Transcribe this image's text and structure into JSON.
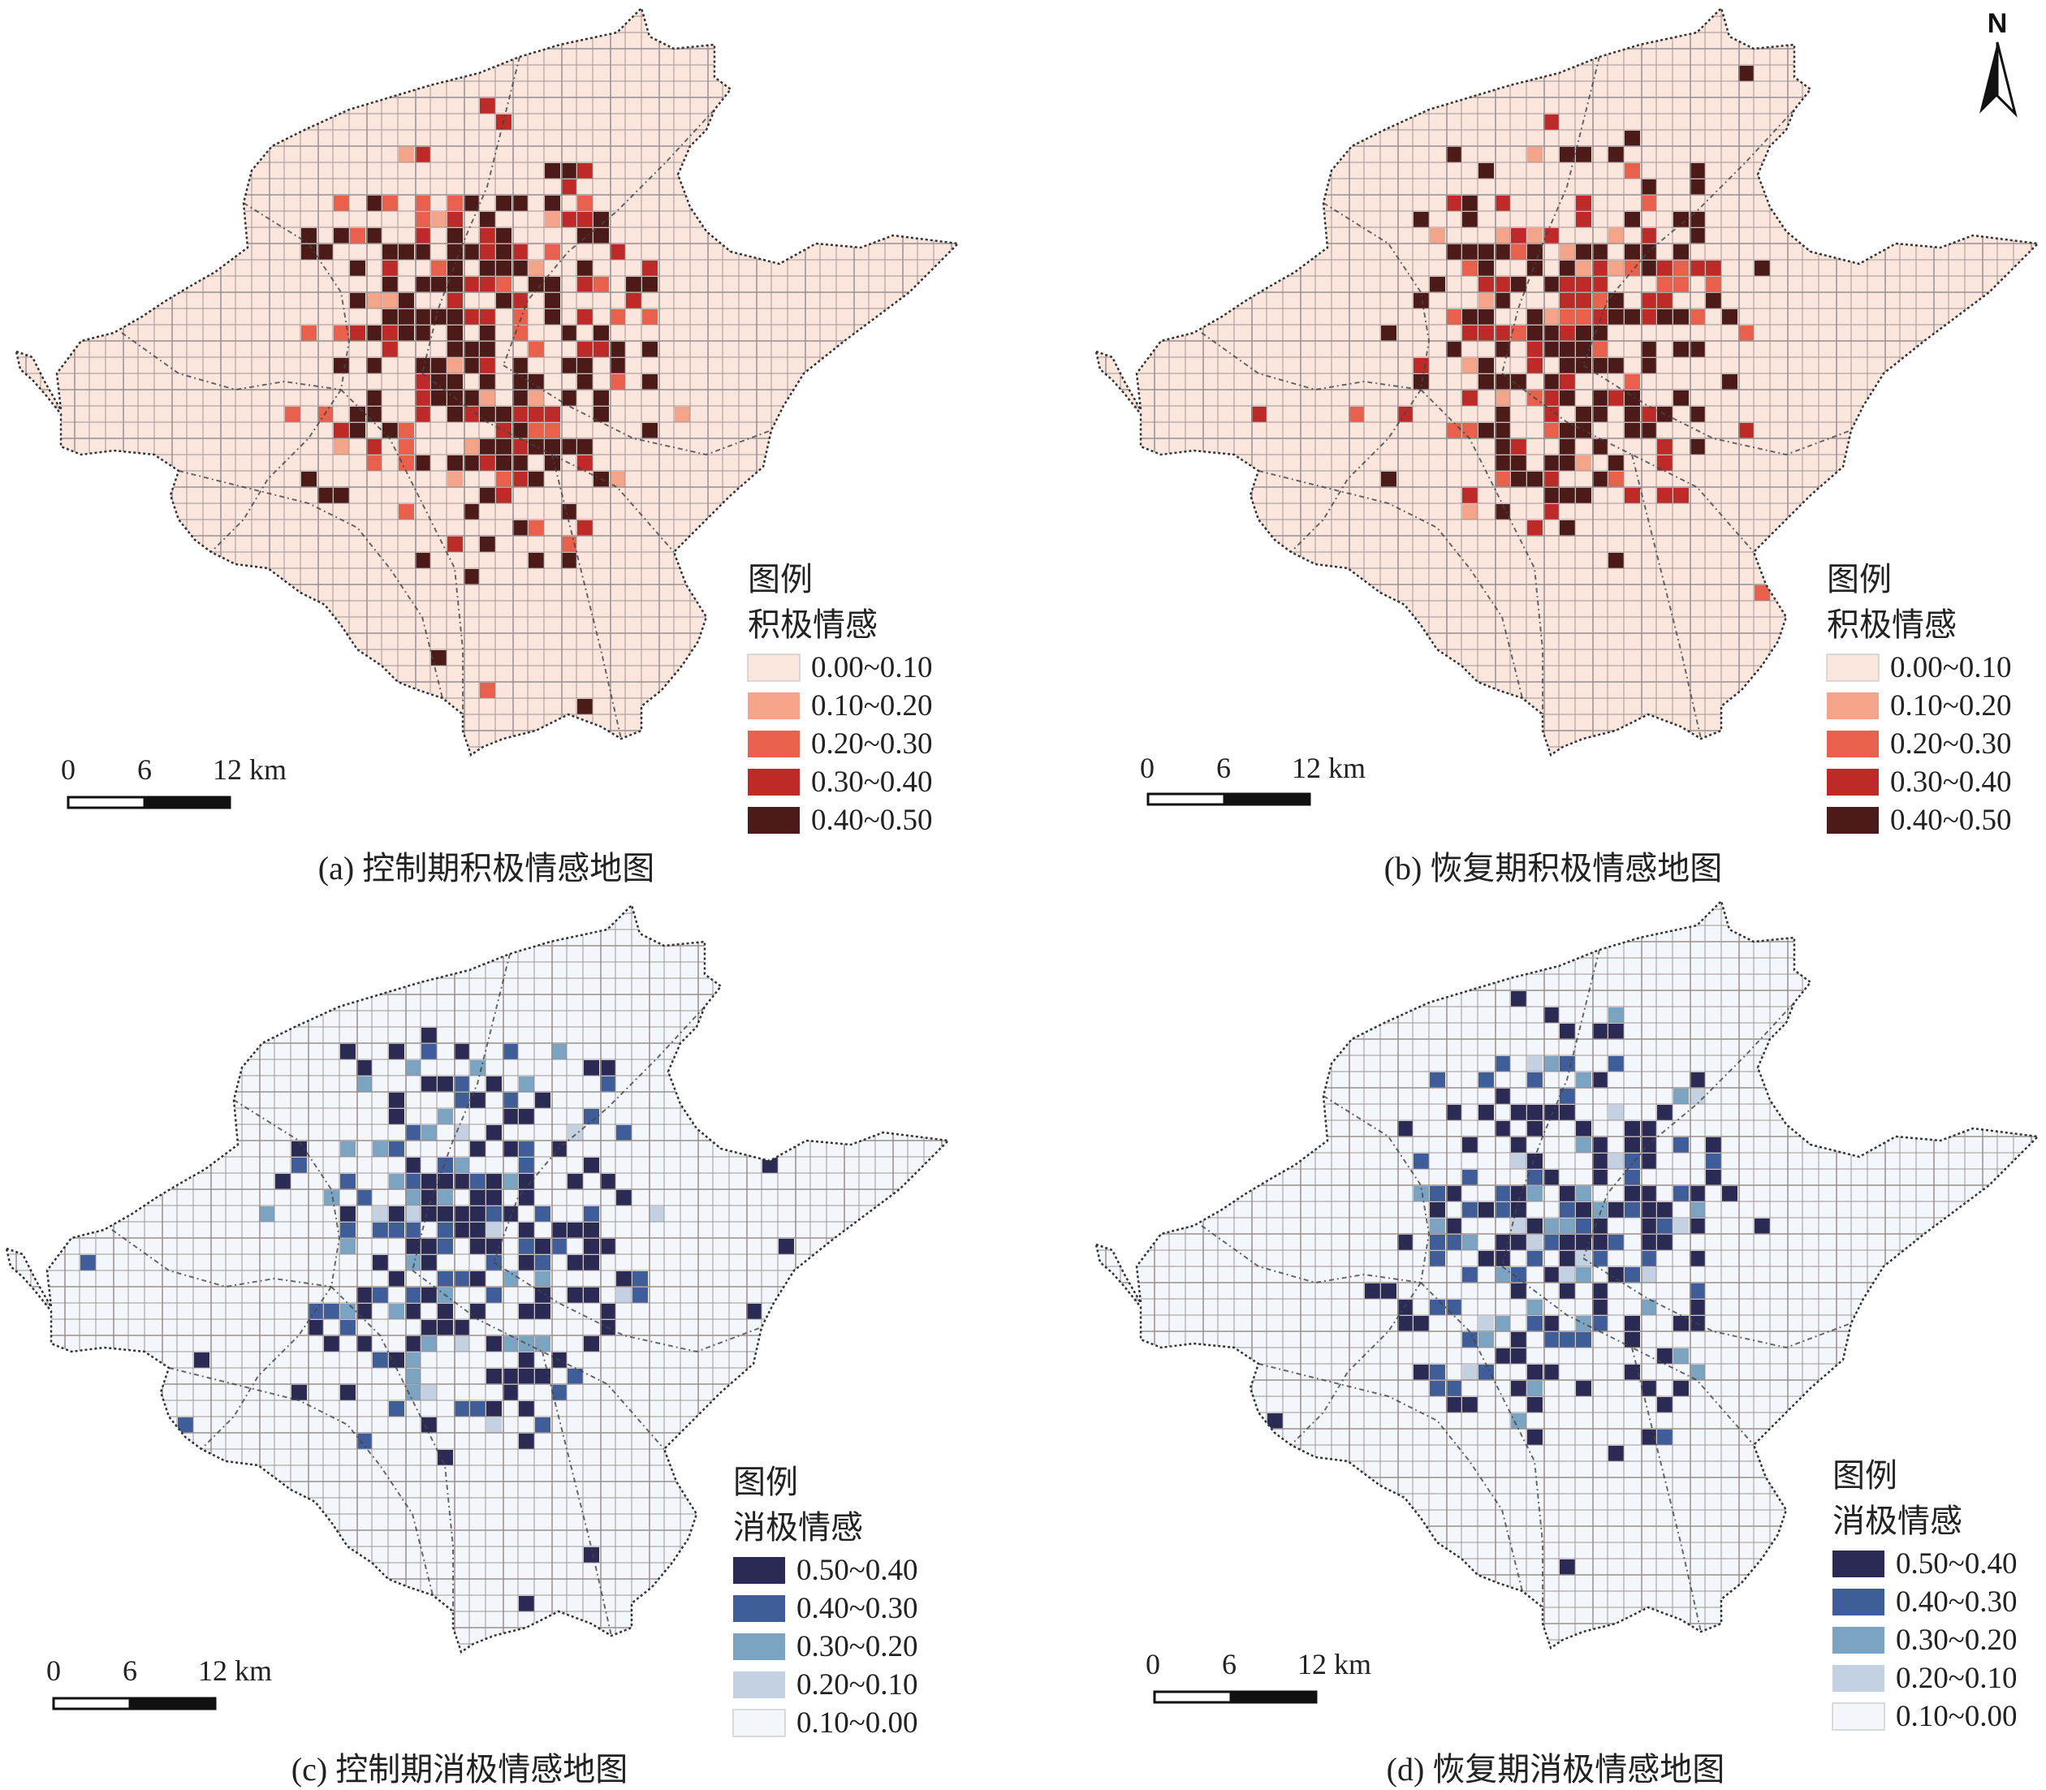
{
  "north_arrow": {
    "label": "N"
  },
  "panels": [
    {
      "id": "a",
      "caption": "(a) 控制期积极情感地图",
      "legend": {
        "title": "图例",
        "subtitle": "积极情感",
        "classes": [
          {
            "label": "0.00~0.10",
            "color": "#fbe6de"
          },
          {
            "label": "0.10~0.20",
            "color": "#f4a489"
          },
          {
            "label": "0.20~0.30",
            "color": "#e9604c"
          },
          {
            "label": "0.30~0.40",
            "color": "#bd2a27"
          },
          {
            "label": "0.40~0.50",
            "color": "#4d1a1a"
          }
        ]
      },
      "scale": {
        "ticks": [
          "0",
          "6",
          "12 km"
        ]
      }
    },
    {
      "id": "b",
      "caption": "(b) 恢复期积极情感地图",
      "legend": {
        "title": "图例",
        "subtitle": "积极情感",
        "classes": [
          {
            "label": "0.00~0.10",
            "color": "#fbe6de"
          },
          {
            "label": "0.10~0.20",
            "color": "#f4a489"
          },
          {
            "label": "0.20~0.30",
            "color": "#e9604c"
          },
          {
            "label": "0.30~0.40",
            "color": "#bd2a27"
          },
          {
            "label": "0.40~0.50",
            "color": "#4d1a1a"
          }
        ]
      },
      "scale": {
        "ticks": [
          "0",
          "6",
          "12 km"
        ]
      }
    },
    {
      "id": "c",
      "caption": "(c) 控制期消极情感地图",
      "legend": {
        "title": "图例",
        "subtitle": "消极情感",
        "classes": [
          {
            "label": "0.50~0.40",
            "color": "#2a2a55"
          },
          {
            "label": "0.40~0.30",
            "color": "#3f5e99"
          },
          {
            "label": "0.30~0.20",
            "color": "#7ba3c2"
          },
          {
            "label": "0.20~0.10",
            "color": "#c4d1e3"
          },
          {
            "label": "0.10~0.00",
            "color": "#f3f6fa"
          }
        ]
      },
      "scale": {
        "ticks": [
          "0",
          "6",
          "12 km"
        ]
      }
    },
    {
      "id": "d",
      "caption": "(d) 恢复期消极情感地图",
      "legend": {
        "title": "图例",
        "subtitle": "消极情感",
        "classes": [
          {
            "label": "0.50~0.40",
            "color": "#2a2a55"
          },
          {
            "label": "0.40~0.30",
            "color": "#3f5e99"
          },
          {
            "label": "0.30~0.20",
            "color": "#7ba3c2"
          },
          {
            "label": "0.20~0.10",
            "color": "#c4d1e3"
          },
          {
            "label": "0.10~0.00",
            "color": "#f3f6fa"
          }
        ]
      },
      "scale": {
        "ticks": [
          "0",
          "6",
          "12 km"
        ]
      }
    }
  ]
}
